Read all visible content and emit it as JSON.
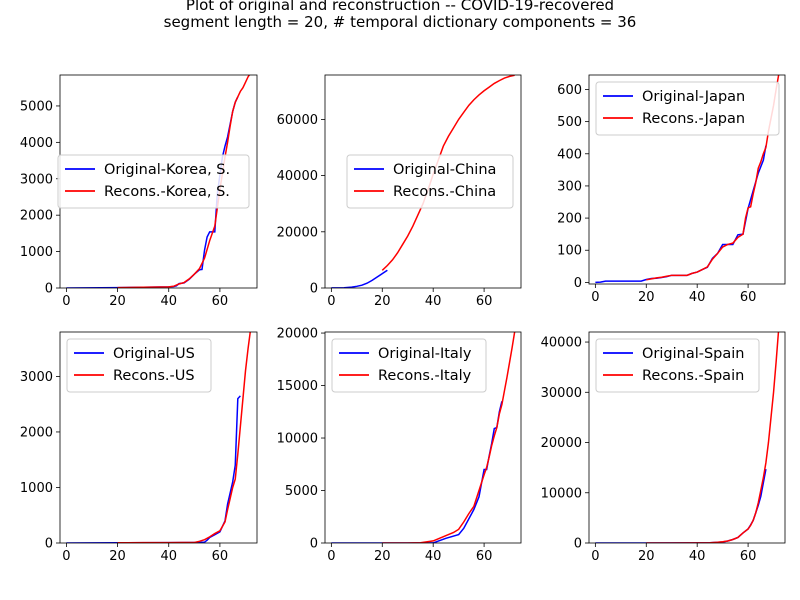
{
  "figure": {
    "title_line1": "Plot of original and reconstruction -- COVID-19-recovered",
    "title_line2": "segment length = 20, # temporal dictionary components = 36"
  },
  "colors": {
    "original": "#0000ff",
    "reconstruction": "#ff0000"
  },
  "chart_data": [
    {
      "type": "line",
      "legend": "center-left",
      "xlim": [
        -2.5,
        74.5
      ],
      "ylim": [
        0,
        5850
      ],
      "xticks": [
        0,
        20,
        40,
        60
      ],
      "yticks": [
        0,
        1000,
        2000,
        3000,
        4000,
        5000
      ],
      "series": [
        {
          "name": "Original-Korea, S.",
          "role": "original",
          "x": [
            0,
            20,
            40,
            42,
            43,
            44,
            46,
            48,
            50,
            52,
            53,
            54,
            55,
            56,
            57,
            58,
            59,
            60,
            61,
            62,
            63,
            64,
            65,
            66,
            67
          ],
          "y": [
            0,
            10,
            30,
            41,
            60,
            120,
            140,
            240,
            380,
            500,
            510,
            1040,
            1400,
            1540,
            1540,
            1540,
            2600,
            3100,
            3600,
            3900,
            4150,
            4500,
            4850,
            5100,
            5250
          ]
        },
        {
          "name": "Recons.-Korea, S.",
          "role": "reconstruction",
          "x": [
            20,
            30,
            40,
            42,
            44,
            46,
            48,
            50,
            52,
            54,
            56,
            58,
            60,
            61,
            62,
            63,
            64,
            65,
            66,
            67,
            68,
            69,
            70,
            71,
            72
          ],
          "y": [
            10,
            20,
            30,
            50,
            110,
            150,
            250,
            380,
            530,
            820,
            1300,
            1700,
            2700,
            3150,
            3600,
            4000,
            4450,
            4850,
            5100,
            5250,
            5400,
            5500,
            5650,
            5800,
            5900
          ]
        }
      ]
    },
    {
      "type": "line",
      "legend": "center",
      "xlim": [
        -2.5,
        74.5
      ],
      "ylim": [
        0,
        75800
      ],
      "xticks": [
        0,
        20,
        40,
        60
      ],
      "yticks": [
        0,
        20000,
        40000,
        60000
      ],
      "series": [
        {
          "name": "Original-China",
          "role": "original",
          "x": [
            0,
            5,
            8,
            10,
            12,
            14,
            16,
            18,
            20,
            22
          ],
          "y": [
            30,
            100,
            300,
            600,
            1000,
            1700,
            2700,
            3900,
            5100,
            6300
          ]
        },
        {
          "name": "Recons.-China",
          "role": "reconstruction",
          "x": [
            20,
            22,
            24,
            26,
            28,
            30,
            32,
            34,
            36,
            38,
            40,
            42,
            44,
            46,
            48,
            50,
            52,
            54,
            56,
            58,
            60,
            62,
            64,
            66,
            68,
            70,
            72
          ],
          "y": [
            6300,
            8000,
            10000,
            12500,
            15500,
            18500,
            22000,
            26000,
            30000,
            35000,
            40500,
            45500,
            50500,
            54000,
            57000,
            60000,
            62500,
            65000,
            67000,
            68700,
            70200,
            71500,
            72800,
            73800,
            74700,
            75300,
            75700
          ]
        }
      ]
    },
    {
      "type": "line",
      "legend": "top-right",
      "xlim": [
        -2.5,
        74.5
      ],
      "ylim": [
        -5,
        645
      ],
      "xticks": [
        0,
        20,
        40,
        60
      ],
      "yticks": [
        0,
        100,
        200,
        300,
        400,
        500,
        600
      ],
      "series": [
        {
          "name": "Original-Japan",
          "role": "original",
          "x": [
            0,
            2,
            4,
            6,
            8,
            10,
            12,
            14,
            16,
            18,
            20,
            22,
            24,
            26,
            28,
            30,
            32,
            34,
            36,
            38,
            40,
            42,
            44,
            46,
            48,
            50,
            52,
            54,
            56,
            58,
            60,
            62,
            64,
            66,
            67
          ],
          "y": [
            0,
            1,
            4,
            4,
            4,
            4,
            4,
            4,
            4,
            4,
            9,
            12,
            13,
            15,
            18,
            22,
            22,
            22,
            22,
            28,
            32,
            40,
            47,
            75,
            90,
            118,
            118,
            118,
            148,
            150,
            230,
            285,
            340,
            380,
            425
          ]
        },
        {
          "name": "Recons.-Japan",
          "role": "reconstruction",
          "x": [
            20,
            22,
            24,
            26,
            28,
            30,
            32,
            34,
            36,
            38,
            40,
            42,
            44,
            46,
            48,
            50,
            52,
            54,
            56,
            58,
            59,
            60,
            61,
            62,
            63,
            64,
            65,
            66,
            67,
            68,
            69,
            70,
            71,
            72
          ],
          "y": [
            8,
            11,
            14,
            16,
            19,
            22,
            22,
            22,
            22,
            28,
            32,
            40,
            48,
            72,
            90,
            110,
            118,
            122,
            140,
            150,
            200,
            232,
            235,
            275,
            310,
            355,
            375,
            400,
            420,
            470,
            510,
            550,
            600,
            645
          ]
        }
      ]
    },
    {
      "type": "line",
      "legend": "top-right",
      "xlim": [
        -2.5,
        74.5
      ],
      "ylim": [
        0,
        3800
      ],
      "xticks": [
        0,
        20,
        40,
        60
      ],
      "yticks": [
        0,
        1000,
        2000,
        3000
      ],
      "series": [
        {
          "name": "Original-US",
          "role": "original",
          "x": [
            0,
            20,
            40,
            50,
            52,
            54,
            55,
            56,
            58,
            60,
            61,
            62,
            63,
            64,
            65,
            66,
            67,
            68
          ],
          "y": [
            0,
            5,
            7,
            8,
            9,
            15,
            50,
            100,
            150,
            200,
            300,
            400,
            700,
            900,
            1100,
            1400,
            2600,
            2650
          ]
        },
        {
          "name": "Recons.-US",
          "role": "reconstruction",
          "x": [
            20,
            30,
            40,
            45,
            50,
            52,
            54,
            56,
            58,
            60,
            61,
            62,
            63,
            64,
            65,
            66,
            67,
            68,
            69,
            70,
            71,
            72
          ],
          "y": [
            5,
            6,
            7,
            8,
            10,
            30,
            60,
            110,
            170,
            220,
            300,
            380,
            600,
            800,
            1000,
            1150,
            1600,
            2100,
            2600,
            3100,
            3500,
            3850
          ]
        }
      ]
    },
    {
      "type": "line",
      "legend": "top-right",
      "xlim": [
        -2.5,
        74.5
      ],
      "ylim": [
        0,
        20100
      ],
      "xticks": [
        0,
        20,
        40,
        60
      ],
      "yticks": [
        0,
        5000,
        10000,
        15000,
        20000
      ],
      "series": [
        {
          "name": "Original-Italy",
          "role": "original",
          "x": [
            0,
            20,
            30,
            40,
            45,
            50,
            52,
            54,
            56,
            58,
            60,
            61,
            62,
            63,
            64,
            65,
            66,
            67
          ],
          "y": [
            0,
            2,
            3,
            10,
            450,
            800,
            1400,
            2300,
            3200,
            4400,
            7000,
            7000,
            8300,
            9500,
            10900,
            11000,
            12500,
            13500
          ]
        },
        {
          "name": "Recons.-Italy",
          "role": "reconstruction",
          "x": [
            20,
            30,
            35,
            40,
            42,
            44,
            46,
            48,
            50,
            52,
            54,
            56,
            58,
            60,
            61,
            62,
            63,
            64,
            65,
            66,
            67,
            68,
            69,
            70,
            71,
            72
          ],
          "y": [
            2,
            5,
            20,
            200,
            400,
            600,
            800,
            1000,
            1300,
            2000,
            2800,
            3500,
            5000,
            6500,
            7200,
            8200,
            9300,
            10200,
            11000,
            12300,
            13200,
            14500,
            15800,
            17200,
            18600,
            20100
          ]
        }
      ]
    },
    {
      "type": "line",
      "legend": "top-right",
      "xlim": [
        -2.5,
        74.5
      ],
      "ylim": [
        0,
        42000
      ],
      "xticks": [
        0,
        20,
        40,
        60
      ],
      "yticks": [
        0,
        10000,
        20000,
        30000,
        40000
      ],
      "series": [
        {
          "name": "Original-Spain",
          "role": "original",
          "x": [
            0,
            20,
            40,
            45,
            50,
            52,
            54,
            56,
            58,
            60,
            61,
            62,
            63,
            64,
            65,
            66,
            67
          ],
          "y": [
            0,
            2,
            30,
            50,
            200,
            400,
            700,
            1100,
            2000,
            2800,
            3600,
            4500,
            6000,
            7500,
            9300,
            12000,
            14700
          ]
        },
        {
          "name": "Recons.-Spain",
          "role": "reconstruction",
          "x": [
            20,
            30,
            40,
            45,
            48,
            50,
            52,
            54,
            56,
            58,
            60,
            61,
            62,
            63,
            64,
            65,
            66,
            67,
            68,
            69,
            70,
            71,
            72
          ],
          "y": [
            2,
            5,
            30,
            60,
            150,
            250,
            400,
            700,
            1100,
            2000,
            2800,
            3500,
            4500,
            6000,
            8000,
            10500,
            13000,
            16000,
            20000,
            25000,
            30000,
            36000,
            42500
          ]
        }
      ]
    }
  ]
}
